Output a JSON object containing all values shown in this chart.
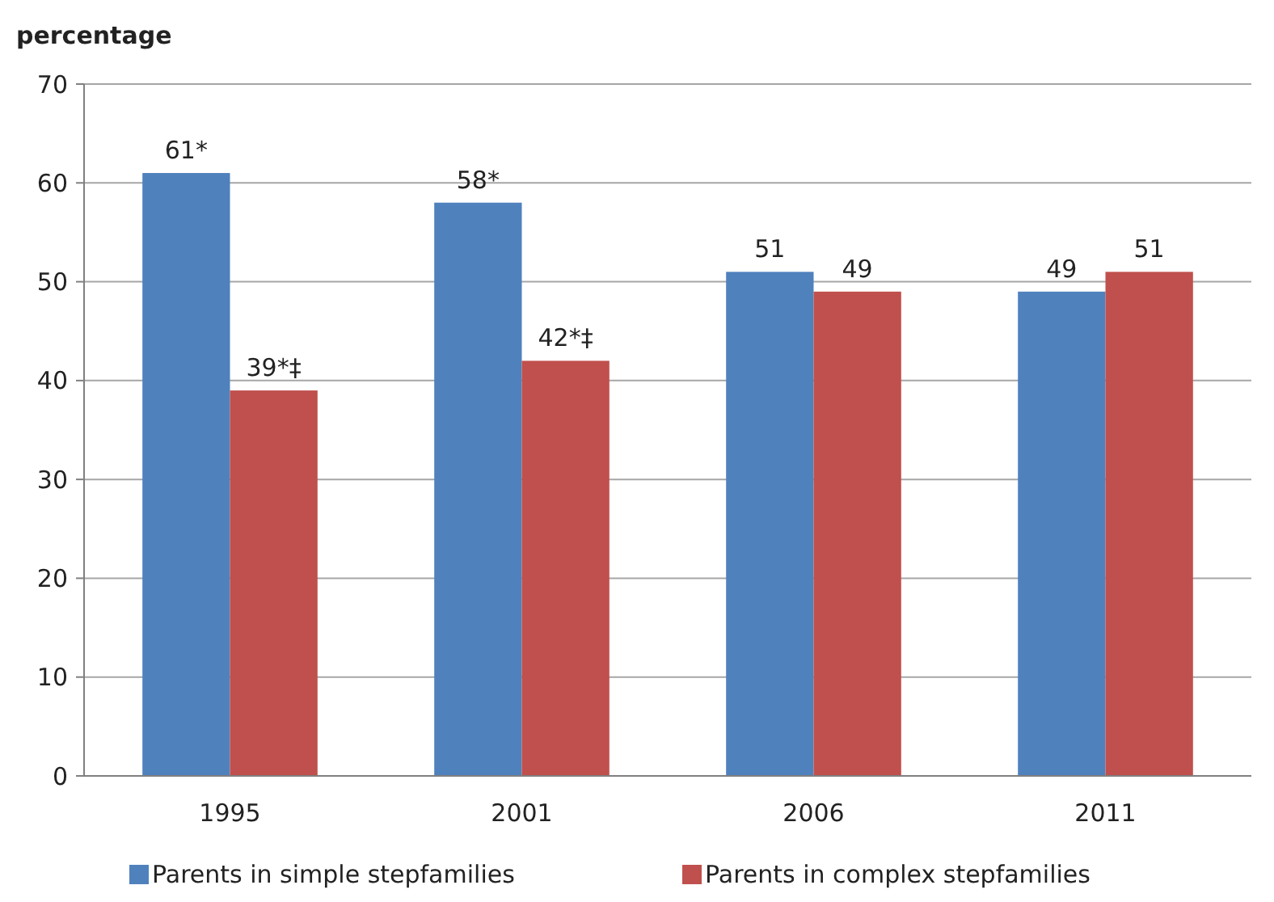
{
  "chart_data": {
    "type": "bar",
    "ylabel": "percentage",
    "categories": [
      "1995",
      "2001",
      "2006",
      "2011"
    ],
    "series": [
      {
        "name": "Parents in simple stepfamilies",
        "color": "#4f81bd",
        "values": [
          61,
          58,
          51,
          49
        ],
        "value_labels": [
          "61*",
          "58*",
          "51",
          "49"
        ]
      },
      {
        "name": "Parents in complex stepfamilies",
        "color": "#c0504d",
        "values": [
          39,
          42,
          49,
          51
        ],
        "value_labels": [
          "39*‡",
          "42*‡",
          "49",
          "51"
        ]
      }
    ],
    "ylim": [
      0,
      70
    ],
    "yticks": [
      0,
      10,
      20,
      30,
      40,
      50,
      60,
      70
    ],
    "grid": "y",
    "legend": "bottom"
  }
}
